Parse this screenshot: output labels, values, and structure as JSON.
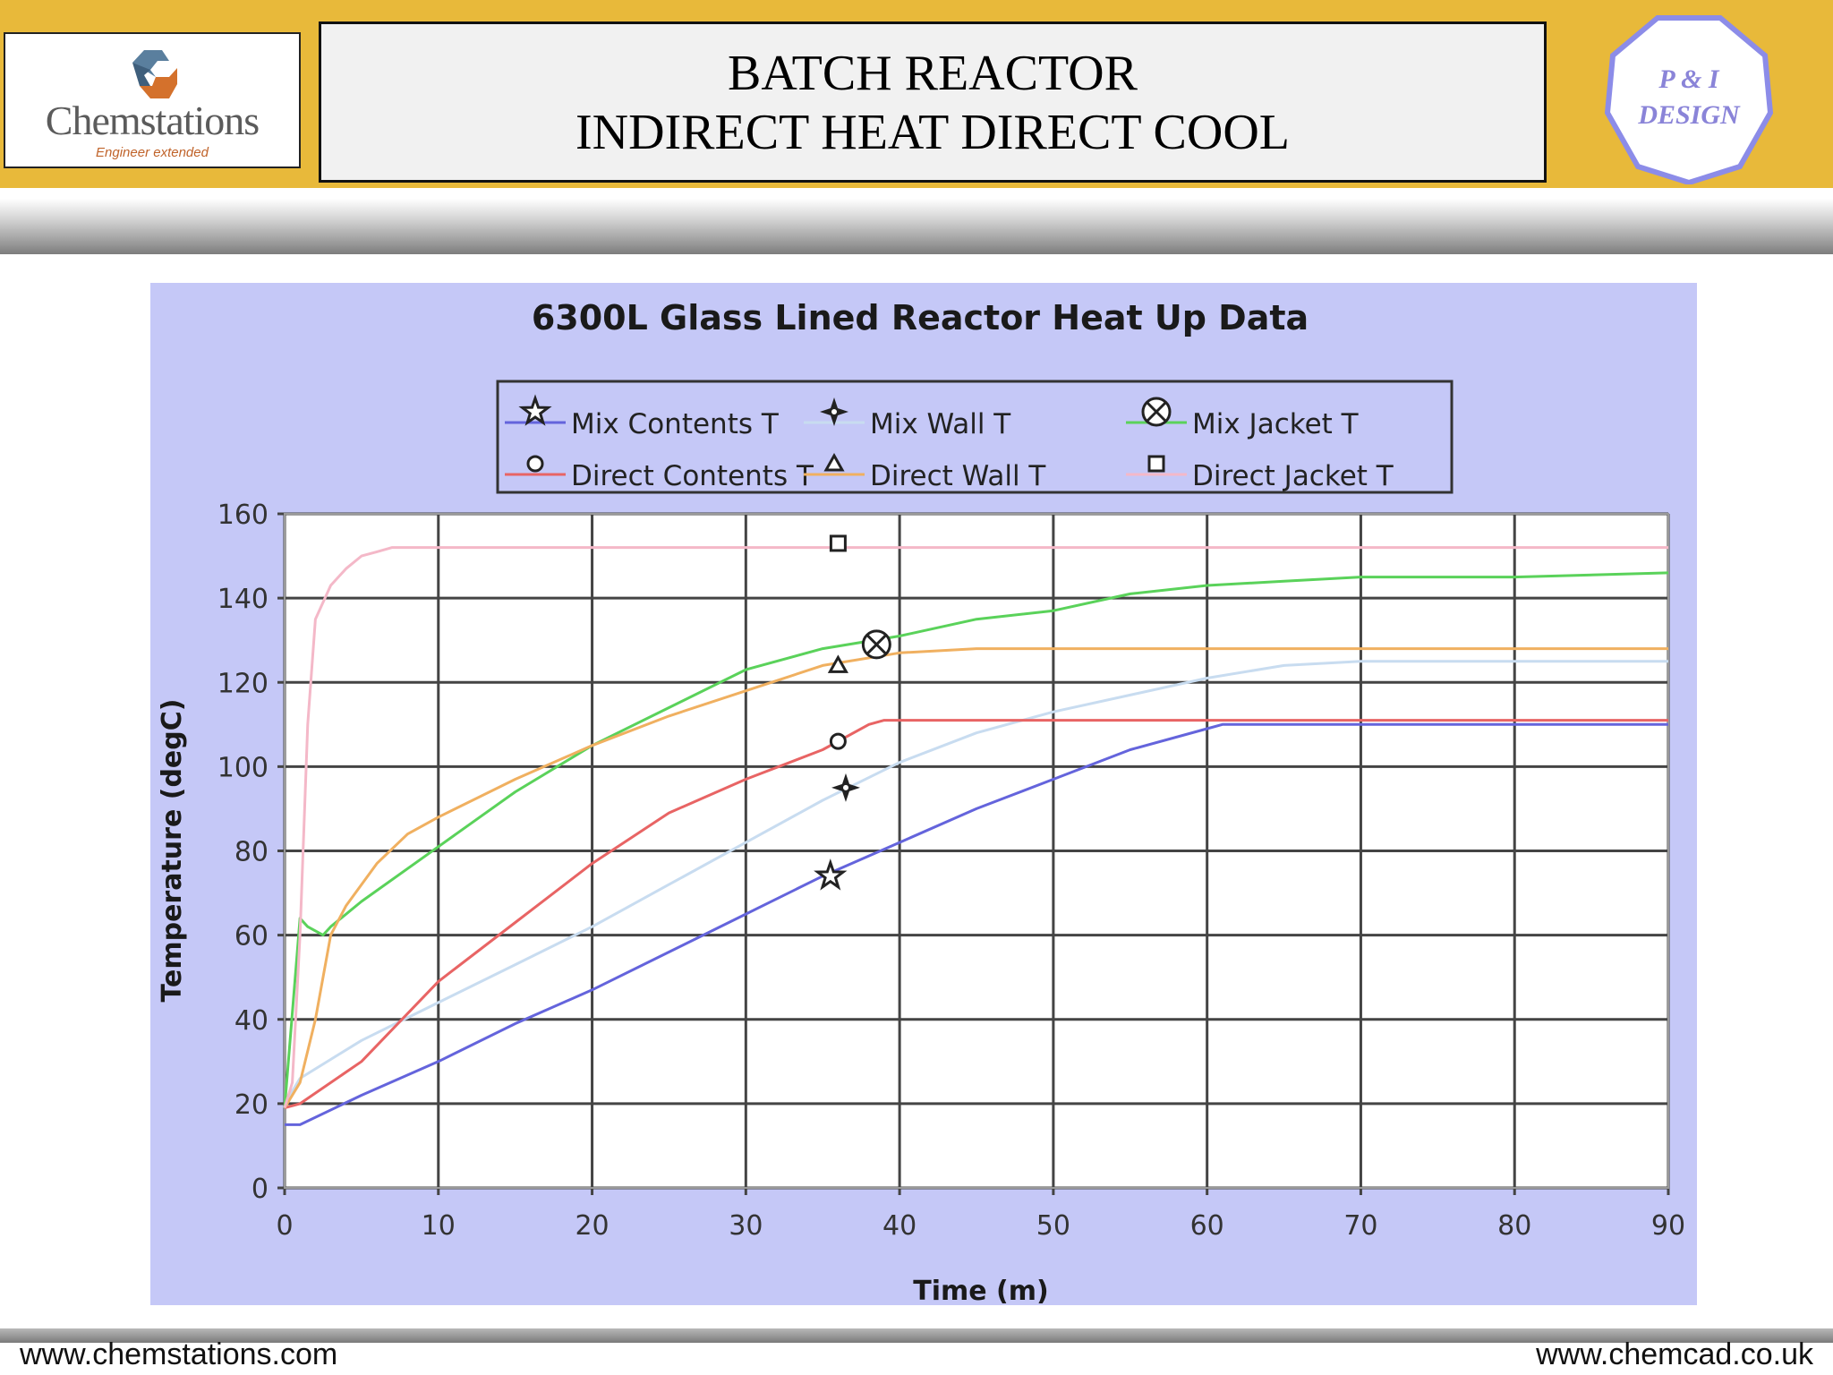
{
  "header": {
    "logo_name": "Chemstations",
    "logo_tagline": "Engineer extended",
    "title_line1": "BATCH REACTOR",
    "title_line2": "INDIRECT HEAT DIRECT COOL",
    "badge_line1": "P & I",
    "badge_line2": "DESIGN"
  },
  "footer": {
    "left_url": "www.chemstations.com",
    "right_url": "www.chemcad.co.uk"
  },
  "chart_data": {
    "type": "line",
    "title": "6300L Glass Lined Reactor Heat Up Data",
    "xlabel": "Time (m)",
    "ylabel": "Temperature (degC)",
    "xlim": [
      0,
      90
    ],
    "ylim": [
      0,
      160
    ],
    "xticks": [
      0,
      10,
      20,
      30,
      40,
      50,
      60,
      70,
      80,
      90
    ],
    "yticks": [
      0,
      20,
      40,
      60,
      80,
      100,
      120,
      140,
      160
    ],
    "grid": true,
    "legend_position": "top",
    "series": [
      {
        "name": "Mix Contents T",
        "color": "#6464dc",
        "marker": "star",
        "marker_at": [
          35.5,
          74
        ],
        "x": [
          0,
          1,
          5,
          10,
          15,
          20,
          25,
          30,
          35,
          40,
          45,
          50,
          55,
          60,
          61,
          70,
          80,
          90
        ],
        "y": [
          15,
          15,
          22,
          30,
          39,
          47,
          56,
          65,
          74,
          82,
          90,
          97,
          104,
          109,
          110,
          110,
          110,
          110
        ]
      },
      {
        "name": "Mix Wall T",
        "color": "#c8dcf0",
        "marker": "four-point-star",
        "marker_at": [
          36.5,
          95
        ],
        "x": [
          0,
          1,
          5,
          10,
          15,
          20,
          25,
          30,
          35,
          40,
          45,
          50,
          55,
          60,
          65,
          70,
          80,
          90
        ],
        "y": [
          20,
          26,
          35,
          44,
          53,
          62,
          72,
          82,
          92,
          101,
          108,
          113,
          117,
          121,
          124,
          125,
          125,
          125
        ]
      },
      {
        "name": "Mix Jacket T",
        "color": "#5ad25a",
        "marker": "circle-x",
        "marker_at": [
          38.5,
          129
        ],
        "x": [
          0,
          1,
          1.5,
          2.5,
          3,
          5,
          10,
          15,
          20,
          25,
          30,
          35,
          40,
          45,
          50,
          55,
          60,
          65,
          70,
          80,
          90
        ],
        "y": [
          19,
          64,
          62,
          60,
          62,
          68,
          81,
          94,
          105,
          114,
          123,
          128,
          131,
          135,
          137,
          141,
          143,
          144,
          145,
          145,
          146
        ]
      },
      {
        "name": "Direct Contents T",
        "color": "#e86464",
        "marker": "circle",
        "marker_at": [
          36,
          106
        ],
        "x": [
          0,
          1,
          5,
          10,
          15,
          20,
          25,
          30,
          35,
          38,
          39,
          50,
          60,
          70,
          80,
          90
        ],
        "y": [
          19,
          20,
          30,
          49,
          63,
          77,
          89,
          97,
          104,
          110,
          111,
          111,
          111,
          111,
          111,
          111
        ]
      },
      {
        "name": "Direct Wall T",
        "color": "#f0b060",
        "marker": "triangle",
        "marker_at": [
          36,
          124
        ],
        "x": [
          0,
          1,
          2,
          3,
          4,
          6,
          8,
          10,
          15,
          20,
          25,
          30,
          35,
          40,
          45,
          50,
          60,
          70,
          80,
          90
        ],
        "y": [
          19,
          25,
          40,
          60,
          67,
          77,
          84,
          88,
          97,
          105,
          112,
          118,
          124,
          127,
          128,
          128,
          128,
          128,
          128,
          128
        ]
      },
      {
        "name": "Direct Jacket T",
        "color": "#f4b8c8",
        "marker": "square",
        "marker_at": [
          36,
          153
        ],
        "x": [
          0,
          0.5,
          1,
          1.5,
          2,
          3,
          4,
          5,
          6,
          7,
          8,
          10,
          20,
          40,
          60,
          90
        ],
        "y": [
          19,
          25,
          60,
          110,
          135,
          143,
          147,
          150,
          151,
          152,
          152,
          152,
          152,
          152,
          152,
          152
        ]
      }
    ]
  }
}
